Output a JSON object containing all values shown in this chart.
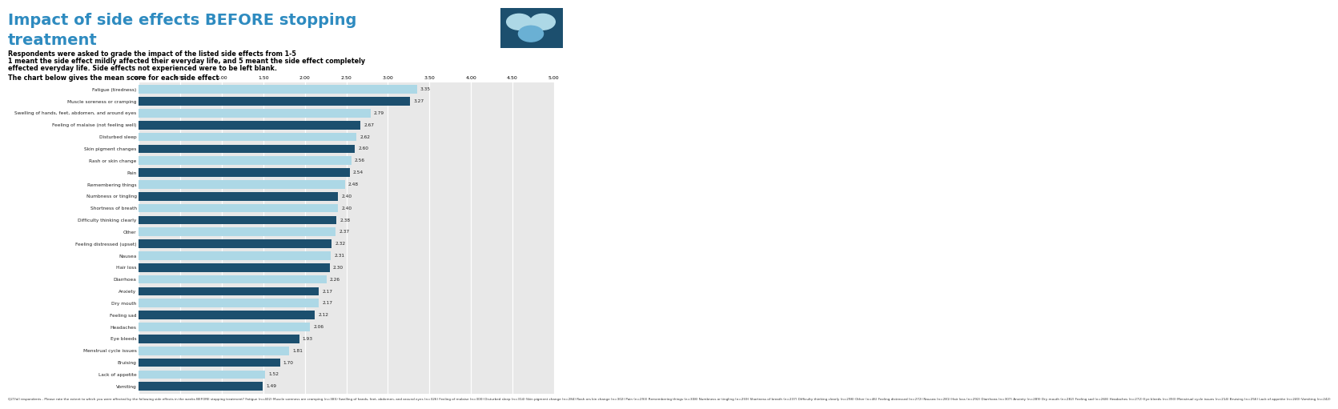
{
  "title_line1": "Impact of side effects BEFORE stopping",
  "title_line2": "treatment",
  "subtitle1": "Respondents were asked to grade the impact of the listed side effects from 1-5",
  "subtitle2": "1 meant the side effect mildly affected their everyday life, and 5 meant the side effect completely",
  "subtitle3": "effected everyday life. Side effects not experienced were to be left blank.",
  "subtitle4": "The chart below gives the mean score for each side effect",
  "categories": [
    "Fatigue (tiredness)",
    "Muscle soreness or cramping",
    "Swelling of hands, feet, abdomen, and around eyes",
    "Feeling of malaise (not feeling well)",
    "Disturbed sleep",
    "Skin pigment changes",
    "Rash or skin change",
    "Pain",
    "Remembering things",
    "Numbness or tingling",
    "Shortness of breath",
    "Difficulty thinking clearly",
    "Other",
    "Feeling distressed (upset)",
    "Nausea",
    "Hair loss",
    "Diarrhoea",
    "Anxiety",
    "Dry mouth",
    "Feeling sad",
    "Headaches",
    "Eye bleeds",
    "Menstrual cycle issues",
    "Bruising",
    "Lack of appetite",
    "Vomiting"
  ],
  "values": [
    3.35,
    3.27,
    2.79,
    2.67,
    2.62,
    2.6,
    2.56,
    2.54,
    2.48,
    2.4,
    2.4,
    2.38,
    2.37,
    2.32,
    2.31,
    2.3,
    2.26,
    2.17,
    2.17,
    2.12,
    2.06,
    1.93,
    1.81,
    1.7,
    1.52,
    1.49
  ],
  "bar_colors_alt": [
    "#add8e6",
    "#1c4f6e",
    "#add8e6",
    "#1c4f6e",
    "#add8e6",
    "#1c4f6e",
    "#add8e6",
    "#1c4f6e",
    "#add8e6",
    "#1c4f6e",
    "#add8e6",
    "#1c4f6e",
    "#add8e6",
    "#1c4f6e",
    "#add8e6",
    "#1c4f6e",
    "#add8e6",
    "#1c4f6e",
    "#add8e6",
    "#1c4f6e",
    "#add8e6",
    "#1c4f6e",
    "#add8e6",
    "#1c4f6e",
    "#add8e6",
    "#1c4f6e"
  ],
  "xlim": [
    0,
    5.0
  ],
  "xticks": [
    0.0,
    0.5,
    1.0,
    1.5,
    2.0,
    2.5,
    3.0,
    3.5,
    4.0,
    4.5,
    5.0
  ],
  "xtick_labels": [
    "0.00",
    "0.50",
    "1.00",
    "1.50",
    "2.00",
    "2.50",
    "3.00",
    "3.50",
    "4.00",
    "4.50",
    "5.00"
  ],
  "title_color": "#2e8bc0",
  "subtitle_color": "#000000",
  "chart_bg": "#e8e8e8",
  "outer_bg": "#ffffff",
  "footer": "Q27/all respondents - Please rate the extent to which you were affected by the following side effects in the weeks BEFORE stopping treatment? Fatigue (n=402) Muscle soreness ore cramping (n=385) Swelling of hands, feet, abdomen, and around eyes (n=326) Feeling of malaise (n=300) Disturbed sleep (n=314) Skin pigment change (n=284) Rash ors kin change (n=302) Pain (n=293) Remembering things (n=308) Numbness or tingling (n=259) Shortness of breath (n=237) Difficulty thinking clearly (n=298) Other (n=46) Feeling distressed (n=272) Nausea (n=281) Hair loss (n=292) Diarrhoea (n=307) Anxiety (n=289) Dry mouth (n=282) Feeling sad (n=268) Headaches (n=272) Eye bleeds (n=393) Menstrual cycle issues (n=214) Bruising (n=256) Lack of appetite (n=240) Vomiting (n=242)"
}
